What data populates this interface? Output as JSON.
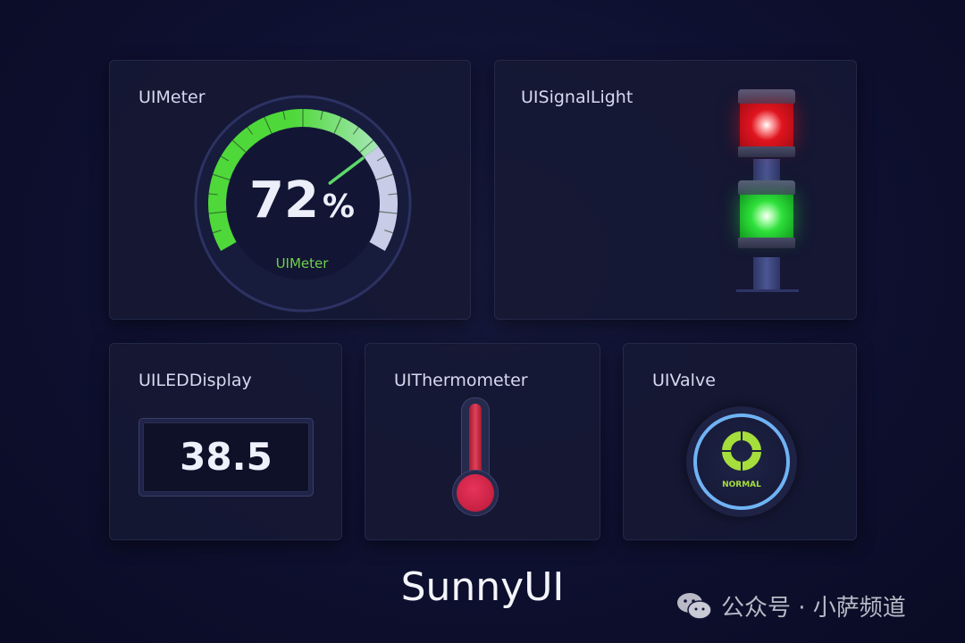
{
  "meter": {
    "title": "UIMeter",
    "value": 72,
    "value_text": "72",
    "unit": "%",
    "label": "UIMeter",
    "colors": {
      "fill": "#4fd83a",
      "fill_end": "#a8e8b8",
      "rest": "#c8cce6",
      "label": "#6fd24a"
    }
  },
  "signal": {
    "title": "UISignalLight",
    "lamps": [
      {
        "color": "red",
        "hex": "#e0141e",
        "on": true
      },
      {
        "color": "green",
        "hex": "#2ee03a",
        "on": true
      }
    ]
  },
  "led": {
    "title": "UILEDDisplay",
    "value": "38.5"
  },
  "thermo": {
    "title": "UIThermometer",
    "level_percent": 95,
    "color": "#e0304e"
  },
  "valve": {
    "title": "UIValve",
    "status": "NORMAL",
    "ring_color": "#6fb3f5",
    "icon_color": "#a6de3c"
  },
  "footer": {
    "brand": "SunnyUI",
    "watermark": "公众号 · 小萨频道",
    "watermark_icon": "wechat-icon"
  }
}
